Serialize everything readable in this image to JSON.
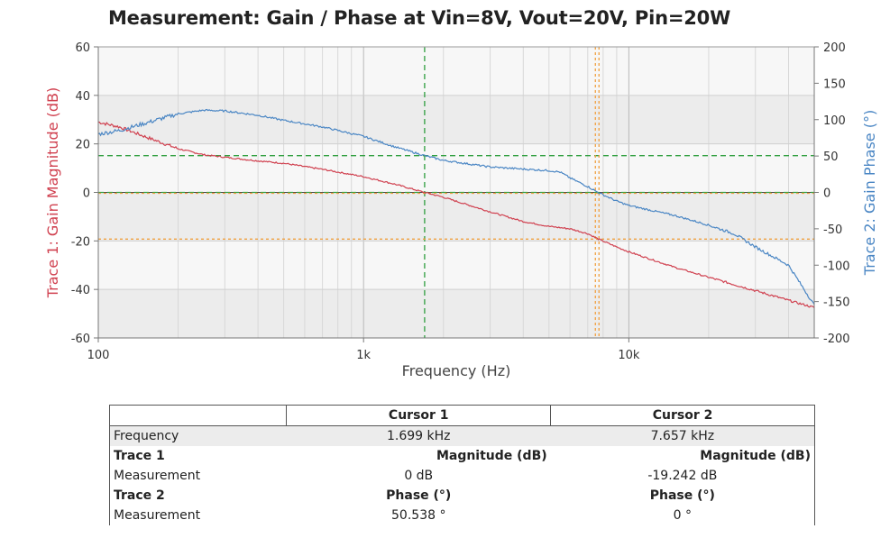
{
  "title": "Measurement: Gain / Phase at Vin=8V, Vout=20V, Pin=20W",
  "chart_data": {
    "type": "line",
    "xlabel": "Frequency (Hz)",
    "x_scale": "log",
    "xlim": [
      100,
      50000
    ],
    "x_ticks": [
      {
        "v": 100,
        "label": "100"
      },
      {
        "v": 1000,
        "label": "1k"
      },
      {
        "v": 10000,
        "label": "10k"
      }
    ],
    "y_left": {
      "label": "Trace 1: Gain Magnitude (dB)",
      "lim": [
        -60,
        60
      ],
      "ticks": [
        60,
        40,
        20,
        0,
        -20,
        -40,
        -60
      ],
      "color": "#d0404f"
    },
    "y_right": {
      "label": "Trace 2: Gain Phase (°)",
      "lim": [
        -200,
        200
      ],
      "ticks": [
        200,
        150,
        100,
        50,
        0,
        -50,
        -100,
        -150,
        -200
      ],
      "color": "#4a86c4"
    },
    "series": [
      {
        "name": "Trace 1",
        "axis": "left",
        "color": "#d0404f",
        "x": [
          100,
          120,
          150,
          200,
          250,
          300,
          400,
          500,
          700,
          1000,
          1300,
          1699,
          2000,
          3000,
          4000,
          5000,
          6000,
          7000,
          7657,
          9000,
          10000,
          15000,
          20000,
          30000,
          40000,
          50000
        ],
        "y": [
          29,
          27,
          23,
          18,
          15.5,
          14.5,
          13,
          12,
          9.5,
          6.5,
          3.5,
          0,
          -2,
          -8,
          -12,
          -14,
          -15,
          -17,
          -19.2,
          -22.5,
          -24.5,
          -31,
          -35,
          -40.5,
          -44.5,
          -47.5
        ]
      },
      {
        "name": "Trace 2",
        "axis": "right",
        "color": "#4a86c4",
        "x": [
          100,
          120,
          150,
          200,
          250,
          300,
          400,
          500,
          700,
          1000,
          1300,
          1699,
          2000,
          3000,
          4000,
          5000,
          5500,
          6000,
          7000,
          7657,
          9000,
          10000,
          15000,
          20000,
          25000,
          30000,
          40000,
          50000
        ],
        "y": [
          80,
          85,
          95,
          108,
          113,
          112,
          106,
          99,
          90,
          77,
          63,
          50.5,
          44,
          35,
          32,
          30,
          28,
          20,
          8,
          0,
          -12,
          -18,
          -32,
          -45,
          -57,
          -75,
          -100,
          -155
        ]
      }
    ],
    "cursors": [
      {
        "name": "Cursor 1",
        "freq": 1699,
        "magnitude_db": 0,
        "phase_deg": 50.538,
        "color": "#2e9e3e"
      },
      {
        "name": "Cursor 2",
        "freq": 7657,
        "magnitude_db": -19.242,
        "phase_deg": 0,
        "color": "#f0a040"
      }
    ],
    "grid": true
  },
  "table": {
    "headers": [
      "",
      "Cursor 1",
      "Cursor 2"
    ],
    "frequency_label": "Frequency",
    "cursor1_freq": "1.699 kHz",
    "cursor2_freq": "7.657 kHz",
    "trace1_label": "Trace 1",
    "trace1_unit": "Magnitude (dB)",
    "measurement_label": "Measurement",
    "trace1_c1": "0 dB",
    "trace1_c2": "-19.242 dB",
    "trace2_label": "Trace 2",
    "trace2_unit": "Phase (°)",
    "trace2_c1": "50.538 °",
    "trace2_c2": "0 °"
  }
}
